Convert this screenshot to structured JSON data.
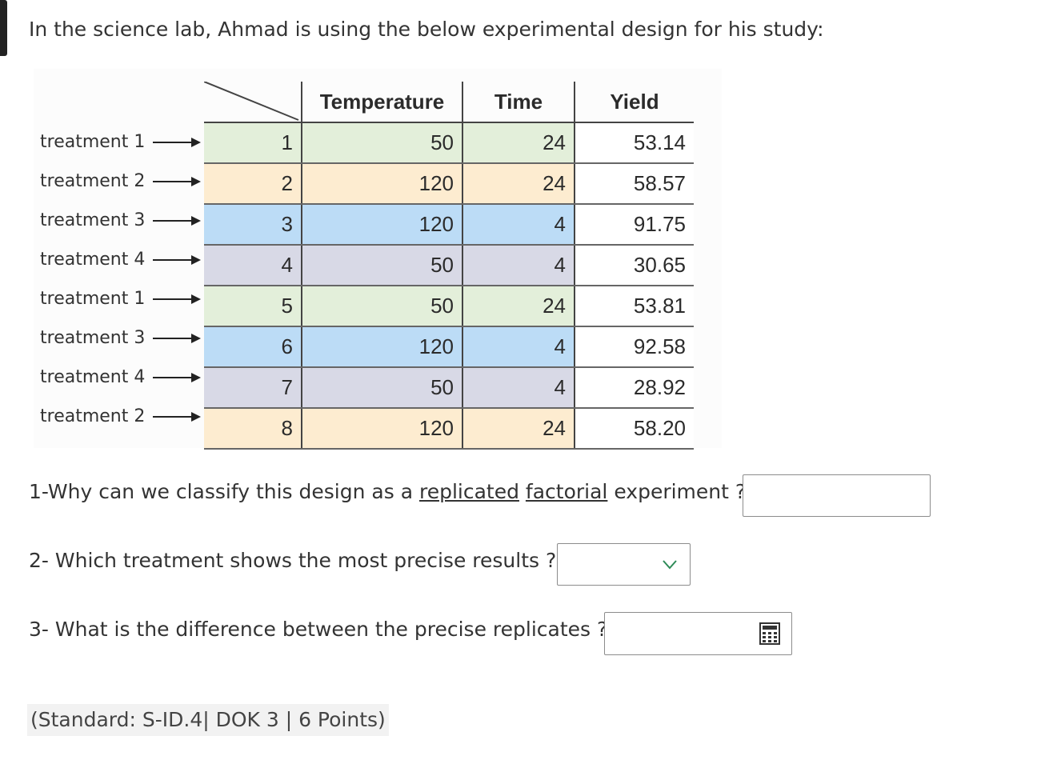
{
  "intro": "In the science lab, Ahmad is using the below experimental design for his study:",
  "table": {
    "headers": {
      "temperature": "Temperature",
      "time": "Time",
      "yield": "Yield"
    },
    "rows": [
      {
        "label": "treatment 1",
        "index": "1",
        "temperature": "50",
        "time": "24",
        "yield": "53.14"
      },
      {
        "label": "treatment 2",
        "index": "2",
        "temperature": "120",
        "time": "24",
        "yield": "58.57"
      },
      {
        "label": "treatment 3",
        "index": "3",
        "temperature": "120",
        "time": "4",
        "yield": "91.75"
      },
      {
        "label": "treatment 4",
        "index": "4",
        "temperature": "50",
        "time": "4",
        "yield": "30.65"
      },
      {
        "label": "treatment 1",
        "index": "5",
        "temperature": "50",
        "time": "24",
        "yield": "53.81"
      },
      {
        "label": "treatment 3",
        "index": "6",
        "temperature": "120",
        "time": "4",
        "yield": "92.58"
      },
      {
        "label": "treatment 4",
        "index": "7",
        "temperature": "50",
        "time": "4",
        "yield": "28.92"
      },
      {
        "label": "treatment 2",
        "index": "8",
        "temperature": "120",
        "time": "24",
        "yield": "58.20"
      }
    ],
    "colors": {
      "treatment_1": "#e3efda",
      "treatment_2": "#fdecd0",
      "treatment_3": "#bcdcf6",
      "treatment_4": "#d8d9e6"
    }
  },
  "questions": {
    "q1": {
      "prefix": "1-Why can we classify this design as a ",
      "word1": "replicated",
      "word2": "factorial",
      "suffix": " experiment ?",
      "value": ""
    },
    "q2": {
      "text": "2- Which treatment shows the most precise results ?",
      "selected": ""
    },
    "q3": {
      "text": "3- What is the difference between the precise replicates ?",
      "value": ""
    }
  },
  "standard": "(Standard: S-ID.4| DOK 3 | 6 Points)",
  "icons": {
    "dropdown": "chevron-down-icon",
    "calculator": "calculator-icon"
  },
  "accent_color": "#2e8b57"
}
